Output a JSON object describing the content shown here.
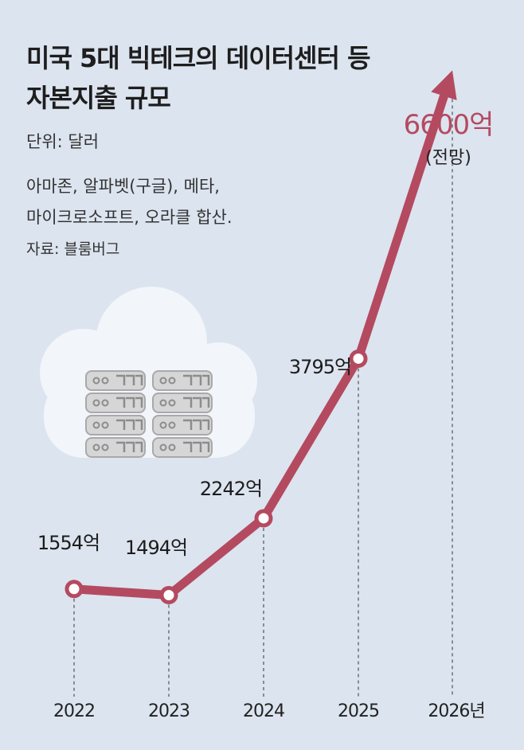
{
  "header": {
    "title_line1": "미국 5대 빅테크의 데이터센터 등",
    "title_line2": "자본지출 규모",
    "unit": "단위: 달러",
    "note_line1": "아마존, 알파벳(구글), 메타,",
    "note_line2": "마이크로소프트, 오라클 합산.",
    "source": "자료: 블룸버그"
  },
  "colors": {
    "line": "#b44a60",
    "background": "#dce4ef",
    "cloud": "#f2f5fa",
    "server": "#c2c2c2"
  },
  "illustration": {
    "cloud_icon": "cloud-icon",
    "server_icon": "server-rack-icon"
  },
  "chart_data": {
    "type": "line",
    "x": [
      "2022",
      "2023",
      "2024",
      "2025",
      "2026년"
    ],
    "values": [
      1554,
      1494,
      2242,
      3795,
      6600
    ],
    "value_labels": [
      "1554억",
      "1494억",
      "2242억",
      "3795억",
      "6600억"
    ],
    "projection_note": "(전망)",
    "projected_index": 4,
    "ylim": [
      1000,
      7000
    ],
    "grid": false,
    "legend": "none"
  }
}
